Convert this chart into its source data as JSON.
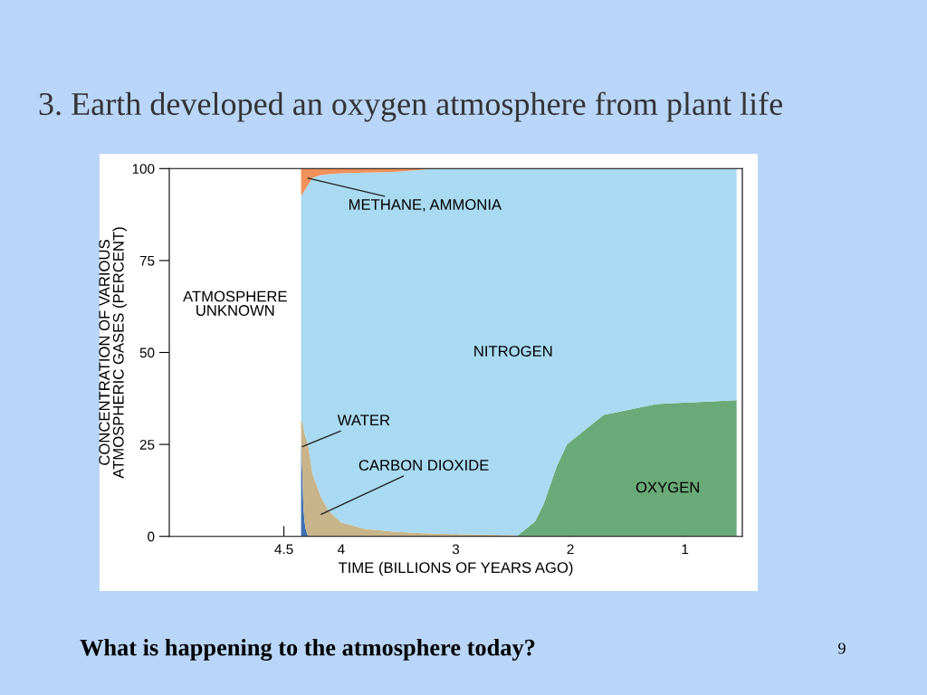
{
  "chart_data": {
    "type": "area",
    "stacked": true,
    "title": "3. Earth developed an oxygen atmosphere from plant life",
    "xlabel": "TIME (BILLIONS OF YEARS AGO)",
    "ylabel": "CONCENTRATION OF VARIOUS\nATMOSPHERIC GASES (PERCENT)",
    "x": [
      4.35,
      4.34,
      4.33,
      4.32,
      4.31,
      4.3,
      4.29,
      4.25,
      4.18,
      4.11,
      4.0,
      3.79,
      3.54,
      3.24,
      3.0,
      2.49,
      2.47,
      2.31,
      2.23,
      2.12,
      2.03,
      1.71,
      1.25,
      0.55
    ],
    "series": [
      {
        "color": "#3f6fb0",
        "values": [
          25,
          18,
          8,
          4,
          2,
          1,
          0,
          0,
          0,
          0,
          0,
          0,
          0,
          0,
          0,
          0,
          0,
          0,
          0,
          0,
          0,
          0,
          0,
          0
        ]
      },
      {
        "color": "#c8b48a",
        "values": [
          7,
          13,
          22,
          24,
          25,
          25,
          25,
          17,
          11,
          7,
          3.8,
          2,
          1.3,
          0.8,
          0.6,
          0.3,
          0,
          0,
          0,
          0,
          0,
          0,
          0,
          0
        ]
      },
      {
        "color": "#6aaa78",
        "values": [
          0,
          0,
          0,
          0,
          0,
          0,
          0,
          0,
          0,
          0,
          0,
          0,
          0,
          0,
          0,
          0,
          0,
          4,
          9,
          19,
          25,
          33,
          36,
          37
        ]
      },
      {
        "color": "#a9daf2",
        "values": [
          60.6,
          62,
          63.5,
          66,
          67.5,
          69,
          70.5,
          80.5,
          87.2,
          91.5,
          94.9,
          96.9,
          97.8,
          99,
          99.4,
          99.7,
          100,
          96,
          91,
          81,
          75,
          67,
          64,
          63
        ]
      },
      {
        "color": "#f0905a",
        "values": [
          7.4,
          7,
          6.5,
          6,
          5.5,
          5,
          4.5,
          2.5,
          1.8,
          1.5,
          1.3,
          1.1,
          0.9,
          0.2,
          0,
          0,
          0,
          0,
          0,
          0,
          0,
          0,
          0,
          0
        ]
      }
    ],
    "xlim": [
      5.5,
      0.5
    ],
    "xticks": [
      4.5,
      4,
      3,
      2,
      1
    ],
    "ylim": [
      0,
      100
    ],
    "yticks": [
      0,
      25,
      50,
      75,
      100
    ],
    "grid": false,
    "annotations": [
      "ATMOSPHERE\nUNKNOWN",
      {
        "text": "METHANE, AMMONIA",
        "x": 4.29,
        "y": 97.4
      },
      "NITROGEN",
      {
        "text": "WATER",
        "x": 4.34,
        "y": 24.4
      },
      "CARBON DIOXIDE",
      "OXYGEN",
      "What is happening to the atmosphere today?",
      "9"
    ]
  }
}
